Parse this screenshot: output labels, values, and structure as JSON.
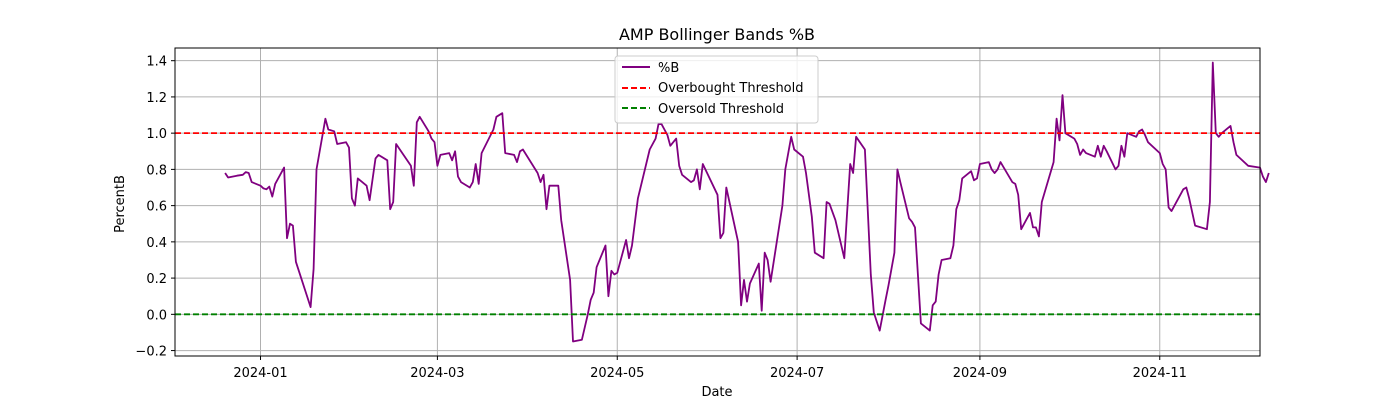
{
  "chart_data": {
    "type": "line",
    "title": "AMP Bollinger Bands %B",
    "xlabel": "Date",
    "ylabel": "PercentB",
    "x_ticks": [
      "2024-01",
      "2024-03",
      "2024-05",
      "2024-07",
      "2024-09",
      "2024-11"
    ],
    "y_ticks": [
      "−0.2",
      "0.0",
      "0.2",
      "0.4",
      "0.6",
      "0.8",
      "1.0",
      "1.2",
      "1.4"
    ],
    "xlim": [
      "2023-12-03",
      "2024-12-05"
    ],
    "ylim": [
      -0.23,
      1.47
    ],
    "grid": true,
    "legend_position": "top-center",
    "series": [
      {
        "name": "%B",
        "color": "#800080",
        "style": "solid",
        "points": [
          [
            "2023-12-20",
            0.78
          ],
          [
            "2023-12-21",
            0.755
          ],
          [
            "2023-12-24",
            0.765
          ],
          [
            "2023-12-26",
            0.77
          ],
          [
            "2023-12-27",
            0.785
          ],
          [
            "2023-12-28",
            0.78
          ],
          [
            "2023-12-29",
            0.73
          ],
          [
            "2024-01-01",
            0.71
          ],
          [
            "2024-01-02",
            0.695
          ],
          [
            "2024-01-03",
            0.69
          ],
          [
            "2024-01-04",
            0.705
          ],
          [
            "2024-01-05",
            0.65
          ],
          [
            "2024-01-06",
            0.72
          ],
          [
            "2024-01-09",
            0.81
          ],
          [
            "2024-01-10",
            0.42
          ],
          [
            "2024-01-11",
            0.5
          ],
          [
            "2024-01-12",
            0.49
          ],
          [
            "2024-01-13",
            0.29
          ],
          [
            "2024-01-18",
            0.04
          ],
          [
            "2024-01-19",
            0.25
          ],
          [
            "2024-01-20",
            0.8
          ],
          [
            "2024-01-23",
            1.08
          ],
          [
            "2024-01-24",
            1.02
          ],
          [
            "2024-01-26",
            1.01
          ],
          [
            "2024-01-27",
            0.94
          ],
          [
            "2024-01-30",
            0.95
          ],
          [
            "2024-01-31",
            0.92
          ],
          [
            "2024-02-01",
            0.64
          ],
          [
            "2024-02-02",
            0.6
          ],
          [
            "2024-02-03",
            0.75
          ],
          [
            "2024-02-06",
            0.71
          ],
          [
            "2024-02-07",
            0.63
          ],
          [
            "2024-02-09",
            0.86
          ],
          [
            "2024-02-10",
            0.88
          ],
          [
            "2024-02-13",
            0.85
          ],
          [
            "2024-02-14",
            0.58
          ],
          [
            "2024-02-15",
            0.62
          ],
          [
            "2024-02-16",
            0.94
          ],
          [
            "2024-02-21",
            0.82
          ],
          [
            "2024-02-22",
            0.71
          ],
          [
            "2024-02-23",
            1.06
          ],
          [
            "2024-02-24",
            1.09
          ],
          [
            "2024-02-27",
            1.01
          ],
          [
            "2024-02-28",
            0.97
          ],
          [
            "2024-02-29",
            0.95
          ],
          [
            "2024-03-01",
            0.82
          ],
          [
            "2024-03-02",
            0.88
          ],
          [
            "2024-03-05",
            0.89
          ],
          [
            "2024-03-06",
            0.85
          ],
          [
            "2024-03-07",
            0.9
          ],
          [
            "2024-03-08",
            0.76
          ],
          [
            "2024-03-09",
            0.73
          ],
          [
            "2024-03-12",
            0.7
          ],
          [
            "2024-03-13",
            0.73
          ],
          [
            "2024-03-14",
            0.83
          ],
          [
            "2024-03-15",
            0.72
          ],
          [
            "2024-03-16",
            0.89
          ],
          [
            "2024-03-20",
            1.02
          ],
          [
            "2024-03-21",
            1.09
          ],
          [
            "2024-03-23",
            1.11
          ],
          [
            "2024-03-24",
            0.89
          ],
          [
            "2024-03-27",
            0.88
          ],
          [
            "2024-03-28",
            0.84
          ],
          [
            "2024-03-29",
            0.9
          ],
          [
            "2024-03-30",
            0.91
          ],
          [
            "2024-04-04",
            0.78
          ],
          [
            "2024-04-05",
            0.73
          ],
          [
            "2024-04-06",
            0.77
          ],
          [
            "2024-04-07",
            0.58
          ],
          [
            "2024-04-08",
            0.71
          ],
          [
            "2024-04-11",
            0.71
          ],
          [
            "2024-04-12",
            0.52
          ],
          [
            "2024-04-15",
            0.19
          ],
          [
            "2024-04-16",
            -0.15
          ],
          [
            "2024-04-19",
            -0.14
          ],
          [
            "2024-04-21",
            0.0
          ],
          [
            "2024-04-22",
            0.08
          ],
          [
            "2024-04-23",
            0.12
          ],
          [
            "2024-04-24",
            0.26
          ],
          [
            "2024-04-27",
            0.38
          ],
          [
            "2024-04-28",
            0.1
          ],
          [
            "2024-04-29",
            0.24
          ],
          [
            "2024-04-30",
            0.22
          ],
          [
            "2024-05-01",
            0.23
          ],
          [
            "2024-05-04",
            0.41
          ],
          [
            "2024-05-05",
            0.31
          ],
          [
            "2024-05-06",
            0.38
          ],
          [
            "2024-05-08",
            0.64
          ],
          [
            "2024-05-12",
            0.91
          ],
          [
            "2024-05-14",
            0.97
          ],
          [
            "2024-05-15",
            1.05
          ],
          [
            "2024-05-16",
            1.05
          ],
          [
            "2024-05-18",
            0.99
          ],
          [
            "2024-05-19",
            0.93
          ],
          [
            "2024-05-21",
            0.97
          ],
          [
            "2024-05-22",
            0.82
          ],
          [
            "2024-05-23",
            0.77
          ],
          [
            "2024-05-26",
            0.73
          ],
          [
            "2024-05-27",
            0.74
          ],
          [
            "2024-05-28",
            0.8
          ],
          [
            "2024-05-29",
            0.69
          ],
          [
            "2024-05-30",
            0.83
          ],
          [
            "2024-06-04",
            0.66
          ],
          [
            "2024-06-05",
            0.42
          ],
          [
            "2024-06-06",
            0.45
          ],
          [
            "2024-06-07",
            0.7
          ],
          [
            "2024-06-11",
            0.4
          ],
          [
            "2024-06-12",
            0.05
          ],
          [
            "2024-06-13",
            0.19
          ],
          [
            "2024-06-14",
            0.07
          ],
          [
            "2024-06-15",
            0.17
          ],
          [
            "2024-06-18",
            0.28
          ],
          [
            "2024-06-19",
            0.02
          ],
          [
            "2024-06-20",
            0.34
          ],
          [
            "2024-06-21",
            0.3
          ],
          [
            "2024-06-22",
            0.18
          ],
          [
            "2024-06-26",
            0.6
          ],
          [
            "2024-06-27",
            0.8
          ],
          [
            "2024-06-29",
            0.98
          ],
          [
            "2024-06-30",
            0.91
          ],
          [
            "2024-07-03",
            0.87
          ],
          [
            "2024-07-04",
            0.78
          ],
          [
            "2024-07-06",
            0.54
          ],
          [
            "2024-07-07",
            0.34
          ],
          [
            "2024-07-10",
            0.31
          ],
          [
            "2024-07-11",
            0.62
          ],
          [
            "2024-07-12",
            0.61
          ],
          [
            "2024-07-14",
            0.52
          ],
          [
            "2024-07-17",
            0.31
          ],
          [
            "2024-07-18",
            0.57
          ],
          [
            "2024-07-19",
            0.83
          ],
          [
            "2024-07-20",
            0.78
          ],
          [
            "2024-07-21",
            0.98
          ],
          [
            "2024-07-24",
            0.91
          ],
          [
            "2024-07-26",
            0.22
          ],
          [
            "2024-07-27",
            0.01
          ],
          [
            "2024-07-29",
            -0.09
          ],
          [
            "2024-07-31",
            0.08
          ],
          [
            "2024-08-01",
            0.16
          ],
          [
            "2024-08-03",
            0.34
          ],
          [
            "2024-08-04",
            0.8
          ],
          [
            "2024-08-05",
            0.73
          ],
          [
            "2024-08-08",
            0.53
          ],
          [
            "2024-08-09",
            0.51
          ],
          [
            "2024-08-10",
            0.48
          ],
          [
            "2024-08-12",
            -0.05
          ],
          [
            "2024-08-15",
            -0.09
          ],
          [
            "2024-08-16",
            0.05
          ],
          [
            "2024-08-17",
            0.07
          ],
          [
            "2024-08-18",
            0.22
          ],
          [
            "2024-08-19",
            0.3
          ],
          [
            "2024-08-22",
            0.31
          ],
          [
            "2024-08-23",
            0.38
          ],
          [
            "2024-08-24",
            0.58
          ],
          [
            "2024-08-25",
            0.63
          ],
          [
            "2024-08-26",
            0.75
          ],
          [
            "2024-08-29",
            0.79
          ],
          [
            "2024-08-30",
            0.74
          ],
          [
            "2024-08-31",
            0.75
          ],
          [
            "2024-09-01",
            0.83
          ],
          [
            "2024-09-04",
            0.84
          ],
          [
            "2024-09-05",
            0.8
          ],
          [
            "2024-09-06",
            0.78
          ],
          [
            "2024-09-07",
            0.8
          ],
          [
            "2024-09-08",
            0.84
          ],
          [
            "2024-09-12",
            0.73
          ],
          [
            "2024-09-13",
            0.72
          ],
          [
            "2024-09-14",
            0.66
          ],
          [
            "2024-09-15",
            0.47
          ],
          [
            "2024-09-18",
            0.56
          ],
          [
            "2024-09-19",
            0.48
          ],
          [
            "2024-09-20",
            0.48
          ],
          [
            "2024-09-21",
            0.43
          ],
          [
            "2024-09-22",
            0.62
          ],
          [
            "2024-09-26",
            0.84
          ],
          [
            "2024-09-27",
            1.08
          ],
          [
            "2024-09-28",
            0.96
          ],
          [
            "2024-09-29",
            1.21
          ],
          [
            "2024-09-30",
            1.0
          ],
          [
            "2024-10-03",
            0.97
          ],
          [
            "2024-10-04",
            0.94
          ],
          [
            "2024-10-05",
            0.88
          ],
          [
            "2024-10-06",
            0.91
          ],
          [
            "2024-10-07",
            0.89
          ],
          [
            "2024-10-10",
            0.87
          ],
          [
            "2024-10-11",
            0.93
          ],
          [
            "2024-10-12",
            0.87
          ],
          [
            "2024-10-13",
            0.93
          ],
          [
            "2024-10-14",
            0.9
          ],
          [
            "2024-10-17",
            0.8
          ],
          [
            "2024-10-18",
            0.82
          ],
          [
            "2024-10-19",
            0.93
          ],
          [
            "2024-10-20",
            0.87
          ],
          [
            "2024-10-21",
            1.0
          ],
          [
            "2024-10-24",
            0.98
          ],
          [
            "2024-10-25",
            1.01
          ],
          [
            "2024-10-26",
            1.02
          ],
          [
            "2024-10-27",
            0.99
          ],
          [
            "2024-10-28",
            0.95
          ],
          [
            "2024-11-01",
            0.89
          ],
          [
            "2024-11-02",
            0.83
          ],
          [
            "2024-11-03",
            0.8
          ],
          [
            "2024-11-04",
            0.59
          ],
          [
            "2024-11-05",
            0.57
          ],
          [
            "2024-11-09",
            0.69
          ],
          [
            "2024-11-10",
            0.7
          ],
          [
            "2024-11-11",
            0.64
          ],
          [
            "2024-11-13",
            0.49
          ],
          [
            "2024-11-17",
            0.47
          ],
          [
            "2024-11-18",
            0.62
          ],
          [
            "2024-11-19",
            1.39
          ],
          [
            "2024-11-20",
            1.0
          ],
          [
            "2024-11-21",
            0.98
          ],
          [
            "2024-11-22",
            1.0
          ],
          [
            "2024-11-25",
            1.04
          ],
          [
            "2024-11-26",
            0.95
          ],
          [
            "2024-11-27",
            0.88
          ],
          [
            "2024-12-01",
            0.82
          ],
          [
            "2024-12-05",
            0.81
          ],
          [
            "2024-12-06",
            0.76
          ],
          [
            "2024-12-07",
            0.73
          ],
          [
            "2024-12-08",
            0.78
          ]
        ]
      },
      {
        "name": "Overbought Threshold",
        "color": "#ff0000",
        "style": "dashed",
        "constant": 1.0
      },
      {
        "name": "Oversold Threshold",
        "color": "#008000",
        "style": "dashed",
        "constant": 0.0
      }
    ]
  }
}
